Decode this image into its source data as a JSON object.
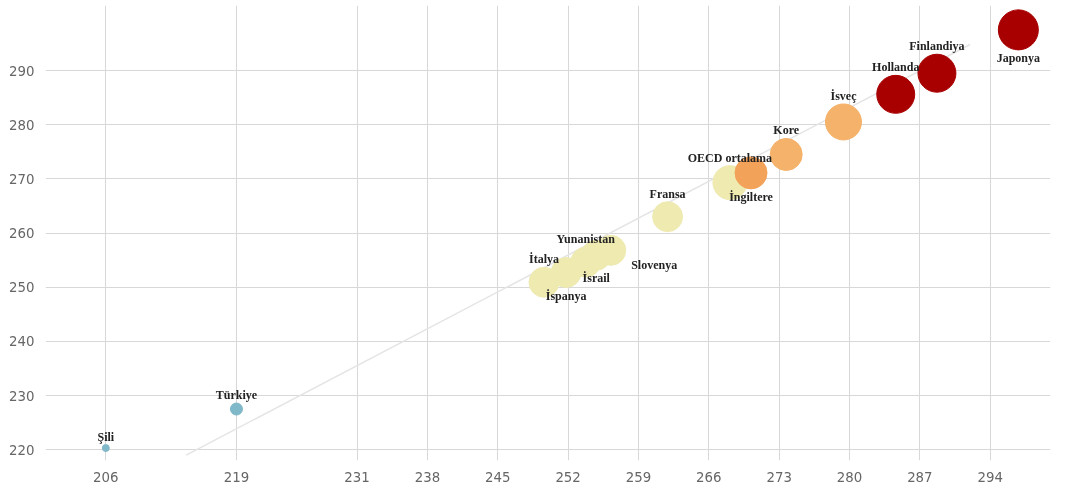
{
  "chart_data": {
    "type": "bubble",
    "x": [
      206,
      219,
      249.6,
      251.8,
      253.75,
      254.8,
      256.25,
      261.9,
      268.1,
      270.2,
      273.7,
      279.4,
      284.6,
      288.7,
      296.8
    ],
    "values": [
      220.3,
      227.5,
      250.9,
      252.7,
      254.6,
      255.9,
      256.8,
      263.0,
      269.3,
      271.1,
      274.5,
      280.5,
      285.6,
      289.5,
      297.5
    ],
    "sizes": [
      0.03,
      0.09,
      0.56,
      0.56,
      0.56,
      0.56,
      0.56,
      0.56,
      0.72,
      0.64,
      0.64,
      0.81,
      0.9,
      0.9,
      1
    ],
    "colors": [
      "#7fb8c8",
      "#7fb8c8",
      "#eeeab0",
      "#eeeab0",
      "#eeeab0",
      "#eeeab0",
      "#eeeab0",
      "#eeeab0",
      "#eeeab0",
      "#f3a25a",
      "#f5b26a",
      "#f5b26a",
      "#a80000",
      "#a80000",
      "#a80000"
    ],
    "marker": "circle",
    "series": [
      {
        "type": "line",
        "color": "#e4e4e4",
        "marker": "none",
        "x": [
          214,
          292
        ],
        "values": [
          219,
          294.8
        ]
      }
    ],
    "annotations": [
      {
        "text": "Şili",
        "x": 206,
        "y": 220.3
      },
      {
        "text": "Türkiye",
        "x": 219,
        "y": 227.5
      },
      {
        "text": "İtalya",
        "x": 249.6,
        "y": 250.9
      },
      {
        "text": "İspanya",
        "x": 251.8,
        "y": 252.7
      },
      {
        "text": "Yunanistan",
        "x": 253.75,
        "y": 254.6
      },
      {
        "text": "İsrail",
        "x": 254.8,
        "y": 255.9
      },
      {
        "text": "Slovenya",
        "x": 256.25,
        "y": 256.8
      },
      {
        "text": "Fransa",
        "x": 261.9,
        "y": 263.0
      },
      {
        "text": "OECD ortalama",
        "x": 268.1,
        "y": 269.3
      },
      {
        "text": "İngiltere",
        "x": 270.2,
        "y": 271.1
      },
      {
        "text": "Kore",
        "x": 273.7,
        "y": 274.5
      },
      {
        "text": "İsveç",
        "x": 279.4,
        "y": 280.5
      },
      {
        "text": "Hollanda",
        "x": 284.6,
        "y": 285.6
      },
      {
        "text": "Finlandiya",
        "x": 288.7,
        "y": 289.5
      },
      {
        "text": "Japonya",
        "x": 296.8,
        "y": 297.5
      }
    ],
    "xlim": [
      200,
      300
    ],
    "ylim": [
      218,
      302
    ],
    "xticks": [
      206,
      219,
      231,
      238,
      245,
      252,
      259,
      266,
      273,
      280,
      287,
      294
    ],
    "yticks": [
      220,
      230,
      240,
      250,
      260,
      270,
      280,
      290
    ],
    "grid": true
  }
}
